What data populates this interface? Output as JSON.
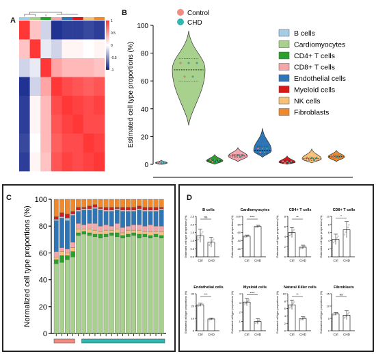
{
  "panels": {
    "a": "A",
    "b": "B",
    "c": "C",
    "d": "D"
  },
  "colors": {
    "b_cells": "#a6cde6",
    "cardiomyocytes": "#a9d18e",
    "cd4": "#2ca02c",
    "cd8": "#f4a6ad",
    "endothelial": "#2e75b6",
    "myeloid": "#d7191c",
    "nk": "#f6c17a",
    "fibroblasts": "#f0892b",
    "control": "#f28b82",
    "chd": "#33b5b0"
  },
  "chart_data": [
    {
      "id": "A",
      "type": "heatmap",
      "title": "",
      "colorbar_ticks": [
        "1",
        "0.5",
        "0",
        "-0.5",
        "-1"
      ],
      "colorbar_range": [
        -1,
        1
      ],
      "column_groups": [
        "control",
        "control",
        "control",
        "chd",
        "chd",
        "chd",
        "chd",
        "chd"
      ],
      "matrix": [
        [
          1.0,
          0.3,
          -0.2,
          -0.95,
          -0.9,
          -0.9,
          -0.85,
          -0.9
        ],
        [
          0.3,
          1.0,
          -0.1,
          -0.2,
          0.05,
          0.05,
          0.0,
          0.05
        ],
        [
          -0.2,
          -0.1,
          1.0,
          0.45,
          0.35,
          0.35,
          0.35,
          0.3
        ],
        [
          -0.95,
          -0.2,
          0.45,
          1.0,
          0.9,
          0.85,
          0.8,
          0.85
        ],
        [
          -0.9,
          0.05,
          0.35,
          0.9,
          1.0,
          0.95,
          0.9,
          0.95
        ],
        [
          -0.9,
          0.05,
          0.35,
          0.85,
          0.95,
          1.0,
          0.9,
          0.9
        ],
        [
          -0.85,
          0.0,
          0.35,
          0.8,
          0.9,
          0.9,
          1.0,
          0.95
        ],
        [
          -0.9,
          0.05,
          0.3,
          0.85,
          0.95,
          0.9,
          0.95,
          1.0
        ]
      ]
    },
    {
      "id": "B",
      "type": "violin",
      "ylabel": "Estimated cell type proportions (%)",
      "ylim": [
        0,
        100
      ],
      "yticks": [
        0,
        20,
        40,
        60,
        80,
        100
      ],
      "group_legend": [
        "Control",
        "CHD"
      ],
      "legend": [
        "B cells",
        "Cardiomyocytes",
        "CD4+ T cells",
        "CD8+ T cells",
        "Endothelial cells",
        "Myeloid cells",
        "NK cells",
        "Fibroblasts"
      ],
      "series": [
        {
          "name": "B cells",
          "median": 1.0,
          "min": 0,
          "max": 3
        },
        {
          "name": "Cardiomyocytes",
          "median": 68,
          "min": 28,
          "max": 96
        },
        {
          "name": "CD4+ T cells",
          "median": 2.5,
          "min": 0,
          "max": 7
        },
        {
          "name": "CD8+ T cells",
          "median": 6,
          "min": 2,
          "max": 12
        },
        {
          "name": "Endothelial cells",
          "median": 10,
          "min": 5,
          "max": 26
        },
        {
          "name": "Myeloid cells",
          "median": 1.5,
          "min": 0,
          "max": 6
        },
        {
          "name": "NK cells",
          "median": 4,
          "min": 1,
          "max": 11
        },
        {
          "name": "Fibroblasts",
          "median": 5.5,
          "min": 2,
          "max": 10
        }
      ]
    },
    {
      "id": "C",
      "type": "bar",
      "stacked": true,
      "ylabel": "Normalized cell type proportions (%)",
      "ylim": [
        0,
        100
      ],
      "yticks": [
        0,
        20,
        40,
        60,
        80,
        100
      ],
      "group_bar": {
        "control": 4,
        "chd": 16
      },
      "order": [
        "Cardiomyocytes",
        "CD4+ T cells",
        "NK cells",
        "CD8+ T cells",
        "Endothelial cells",
        "B cells",
        "Myeloid cells",
        "Fibroblasts"
      ],
      "samples": [
        [
          52,
          3,
          2,
          4,
          23,
          1,
          2,
          13
        ],
        [
          53,
          5,
          3,
          3,
          22,
          1,
          3,
          10
        ],
        [
          55,
          3,
          2,
          3,
          21,
          2,
          3,
          11
        ],
        [
          57,
          4,
          3,
          4,
          20,
          1,
          2,
          9
        ],
        [
          73,
          2,
          3,
          4,
          9,
          1,
          2,
          6
        ],
        [
          74,
          2,
          2,
          3,
          11,
          1,
          1,
          6
        ],
        [
          73,
          2,
          3,
          4,
          10,
          1,
          2,
          5
        ],
        [
          72,
          2,
          3,
          5,
          11,
          1,
          2,
          4
        ],
        [
          71,
          3,
          2,
          4,
          12,
          1,
          1,
          6
        ],
        [
          72,
          2,
          3,
          4,
          10,
          1,
          2,
          6
        ],
        [
          73,
          2,
          2,
          3,
          11,
          1,
          2,
          6
        ],
        [
          72,
          3,
          3,
          4,
          10,
          1,
          1,
          6
        ],
        [
          71,
          2,
          2,
          4,
          12,
          1,
          2,
          6
        ],
        [
          72,
          2,
          3,
          3,
          11,
          1,
          2,
          6
        ],
        [
          73,
          2,
          2,
          4,
          10,
          1,
          2,
          6
        ],
        [
          71,
          3,
          3,
          4,
          11,
          1,
          2,
          5
        ],
        [
          72,
          2,
          2,
          4,
          11,
          1,
          2,
          6
        ],
        [
          71,
          2,
          3,
          5,
          10,
          1,
          2,
          6
        ],
        [
          72,
          2,
          2,
          4,
          11,
          1,
          2,
          6
        ],
        [
          71,
          2,
          3,
          4,
          12,
          1,
          1,
          6
        ]
      ]
    },
    {
      "id": "D",
      "type": "bar",
      "xlabels": [
        "Ctrl",
        "CHD"
      ],
      "ylabel": "Estimated cell type proportions (%)",
      "subplots": [
        {
          "title": "B cells",
          "ylim": [
            0,
            2.5
          ],
          "yticks": [
            "0.0",
            "0.5",
            "1.0",
            "1.5",
            "2.0",
            "2.5"
          ],
          "values": [
            1.3,
            0.9
          ],
          "err": [
            0.4,
            0.3
          ],
          "sig": "ns"
        },
        {
          "title": "Cardiomyocytes",
          "ylim": [
            0,
            100
          ],
          "yticks": [
            "0",
            "20",
            "40",
            "60",
            "80",
            "100"
          ],
          "values": [
            51,
            75
          ],
          "err": [
            3,
            3
          ],
          "sig": "****"
        },
        {
          "title": "CD4+ T cells",
          "ylim": [
            0,
            8
          ],
          "yticks": [
            "0",
            "2",
            "4",
            "6",
            "8"
          ],
          "values": [
            4.8,
            1.9
          ],
          "err": [
            1.0,
            0.4
          ],
          "sig": "**"
        },
        {
          "title": "CD8+ T cells",
          "ylim": [
            0,
            10
          ],
          "yticks": [
            "0",
            "2",
            "4",
            "6",
            "8",
            "10"
          ],
          "values": [
            4.3,
            6.7
          ],
          "err": [
            1.3,
            2.0
          ],
          "sig": "*"
        },
        {
          "title": "Endothelial cells",
          "ylim": [
            0,
            30
          ],
          "yticks": [
            "0",
            "10",
            "20",
            "30"
          ],
          "values": [
            21,
            9.5
          ],
          "err": [
            1.3,
            0.8
          ],
          "sig": "***"
        },
        {
          "title": "Myeloid cells",
          "ylim": [
            0,
            4
          ],
          "yticks": [
            "0",
            "1",
            "2",
            "3",
            "4"
          ],
          "values": [
            3.1,
            1.0
          ],
          "err": [
            0.4,
            0.3
          ],
          "sig": "****"
        },
        {
          "title": "Natural Killer cells",
          "ylim": [
            0,
            10
          ],
          "yticks": [
            "0",
            "2",
            "4",
            "6",
            "8",
            "10"
          ],
          "values": [
            7.0,
            3.3
          ],
          "err": [
            1.3,
            0.5
          ],
          "sig": "**"
        },
        {
          "title": "Fibroblasts",
          "ylim": [
            0,
            15
          ],
          "yticks": [
            "0",
            "5",
            "10",
            "15"
          ],
          "values": [
            6.8,
            6.3
          ],
          "err": [
            0.6,
            1.8
          ],
          "sig": "ns"
        }
      ]
    }
  ]
}
